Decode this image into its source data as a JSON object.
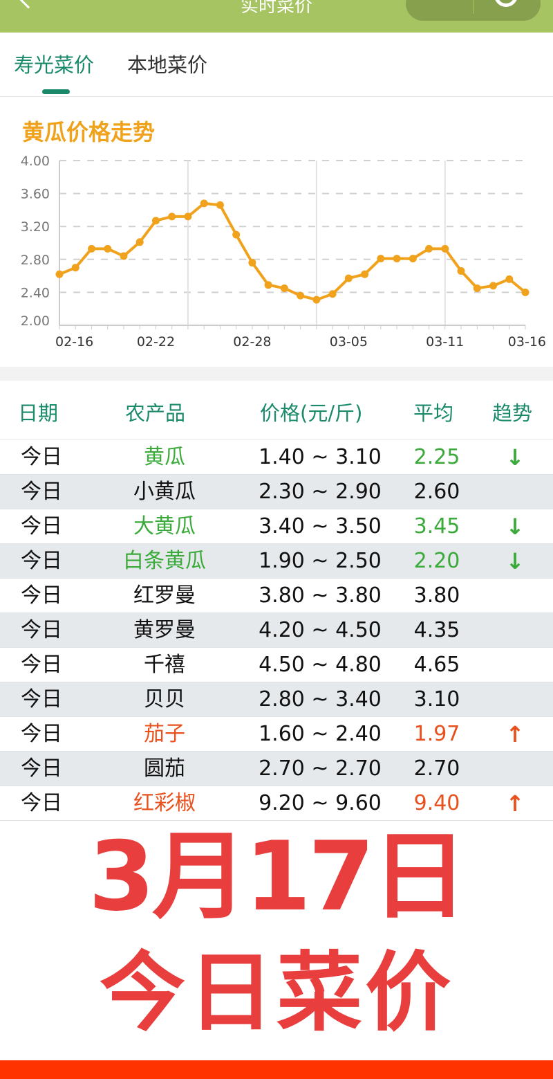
{
  "header": {
    "title": "实时菜价",
    "more_icon": "more-dots-icon",
    "target_icon": "target-icon"
  },
  "tabs": [
    {
      "label": "寿光菜价",
      "active": true
    },
    {
      "label": "本地菜价",
      "active": false
    }
  ],
  "chart_title": "黄瓜价格走势",
  "chart_data": {
    "type": "line",
    "title": "黄瓜价格走势",
    "x": [
      "02-16",
      "02-17",
      "02-18",
      "02-19",
      "02-20",
      "02-21",
      "02-22",
      "02-23",
      "02-24",
      "02-25",
      "02-26",
      "02-27",
      "02-28",
      "02-29",
      "03-01",
      "03-02",
      "03-03",
      "03-04",
      "03-05",
      "03-06",
      "03-07",
      "03-08",
      "03-09",
      "03-10",
      "03-11",
      "03-12",
      "03-13",
      "03-14",
      "03-15",
      "03-16"
    ],
    "x_tick_labels": [
      "02-16",
      "02-22",
      "02-28",
      "03-05",
      "03-11",
      "03-16"
    ],
    "y_tick_labels": [
      "2.00",
      "2.40",
      "2.80",
      "3.20",
      "3.60",
      "4.00"
    ],
    "series": [
      {
        "values": [
          2.62,
          2.7,
          2.93,
          2.93,
          2.84,
          3.01,
          3.27,
          3.32,
          3.32,
          3.48,
          3.46,
          3.1,
          2.76,
          2.49,
          2.45,
          2.36,
          2.31,
          2.38,
          2.57,
          2.62,
          2.81,
          2.81,
          2.81,
          2.93,
          2.93,
          2.66,
          2.45,
          2.48,
          2.56,
          2.4
        ],
        "color": "#f0a21c"
      }
    ],
    "ylim": [
      2.0,
      4.0
    ],
    "grid": "dashed horizontal"
  },
  "table": {
    "headers": [
      "日期",
      "农产品",
      "价格(元/斤)",
      "平均",
      "趋势"
    ],
    "rows": [
      {
        "date": "今日",
        "name": "黄瓜",
        "range": "1.40 ~ 3.10",
        "avg": "2.25",
        "trend": "down"
      },
      {
        "date": "今日",
        "name": "小黄瓜",
        "range": "2.30 ~ 2.90",
        "avg": "2.60",
        "trend": ""
      },
      {
        "date": "今日",
        "name": "大黄瓜",
        "range": "3.40 ~ 3.50",
        "avg": "3.45",
        "trend": "down"
      },
      {
        "date": "今日",
        "name": "白条黄瓜",
        "range": "1.90 ~ 2.50",
        "avg": "2.20",
        "trend": "down"
      },
      {
        "date": "今日",
        "name": "红罗曼",
        "range": "3.80 ~ 3.80",
        "avg": "3.80",
        "trend": ""
      },
      {
        "date": "今日",
        "name": "黄罗曼",
        "range": "4.20 ~ 4.50",
        "avg": "4.35",
        "trend": ""
      },
      {
        "date": "今日",
        "name": "千禧",
        "range": "4.50 ~ 4.80",
        "avg": "4.65",
        "trend": ""
      },
      {
        "date": "今日",
        "name": "贝贝",
        "range": "2.80 ~ 3.40",
        "avg": "3.10",
        "trend": ""
      },
      {
        "date": "今日",
        "name": "茄子",
        "range": "1.60 ~ 2.40",
        "avg": "1.97",
        "trend": "up"
      },
      {
        "date": "今日",
        "name": "圆茄",
        "range": "2.70 ~ 2.70",
        "avg": "2.70",
        "trend": ""
      },
      {
        "date": "今日",
        "name": "红彩椒",
        "range": "9.20 ~ 9.60",
        "avg": "9.40",
        "trend": "up"
      }
    ]
  },
  "overlay": {
    "line1": "3月17日",
    "line2": "今日菜价"
  },
  "colors": {
    "header": "#a6c462",
    "accent": "#1b8a6b",
    "line": "#f0a21c",
    "down": "#3aaa3a",
    "up": "#e8501e",
    "overlay": "#e83e3e",
    "bottom_bar": "#ff3300"
  }
}
